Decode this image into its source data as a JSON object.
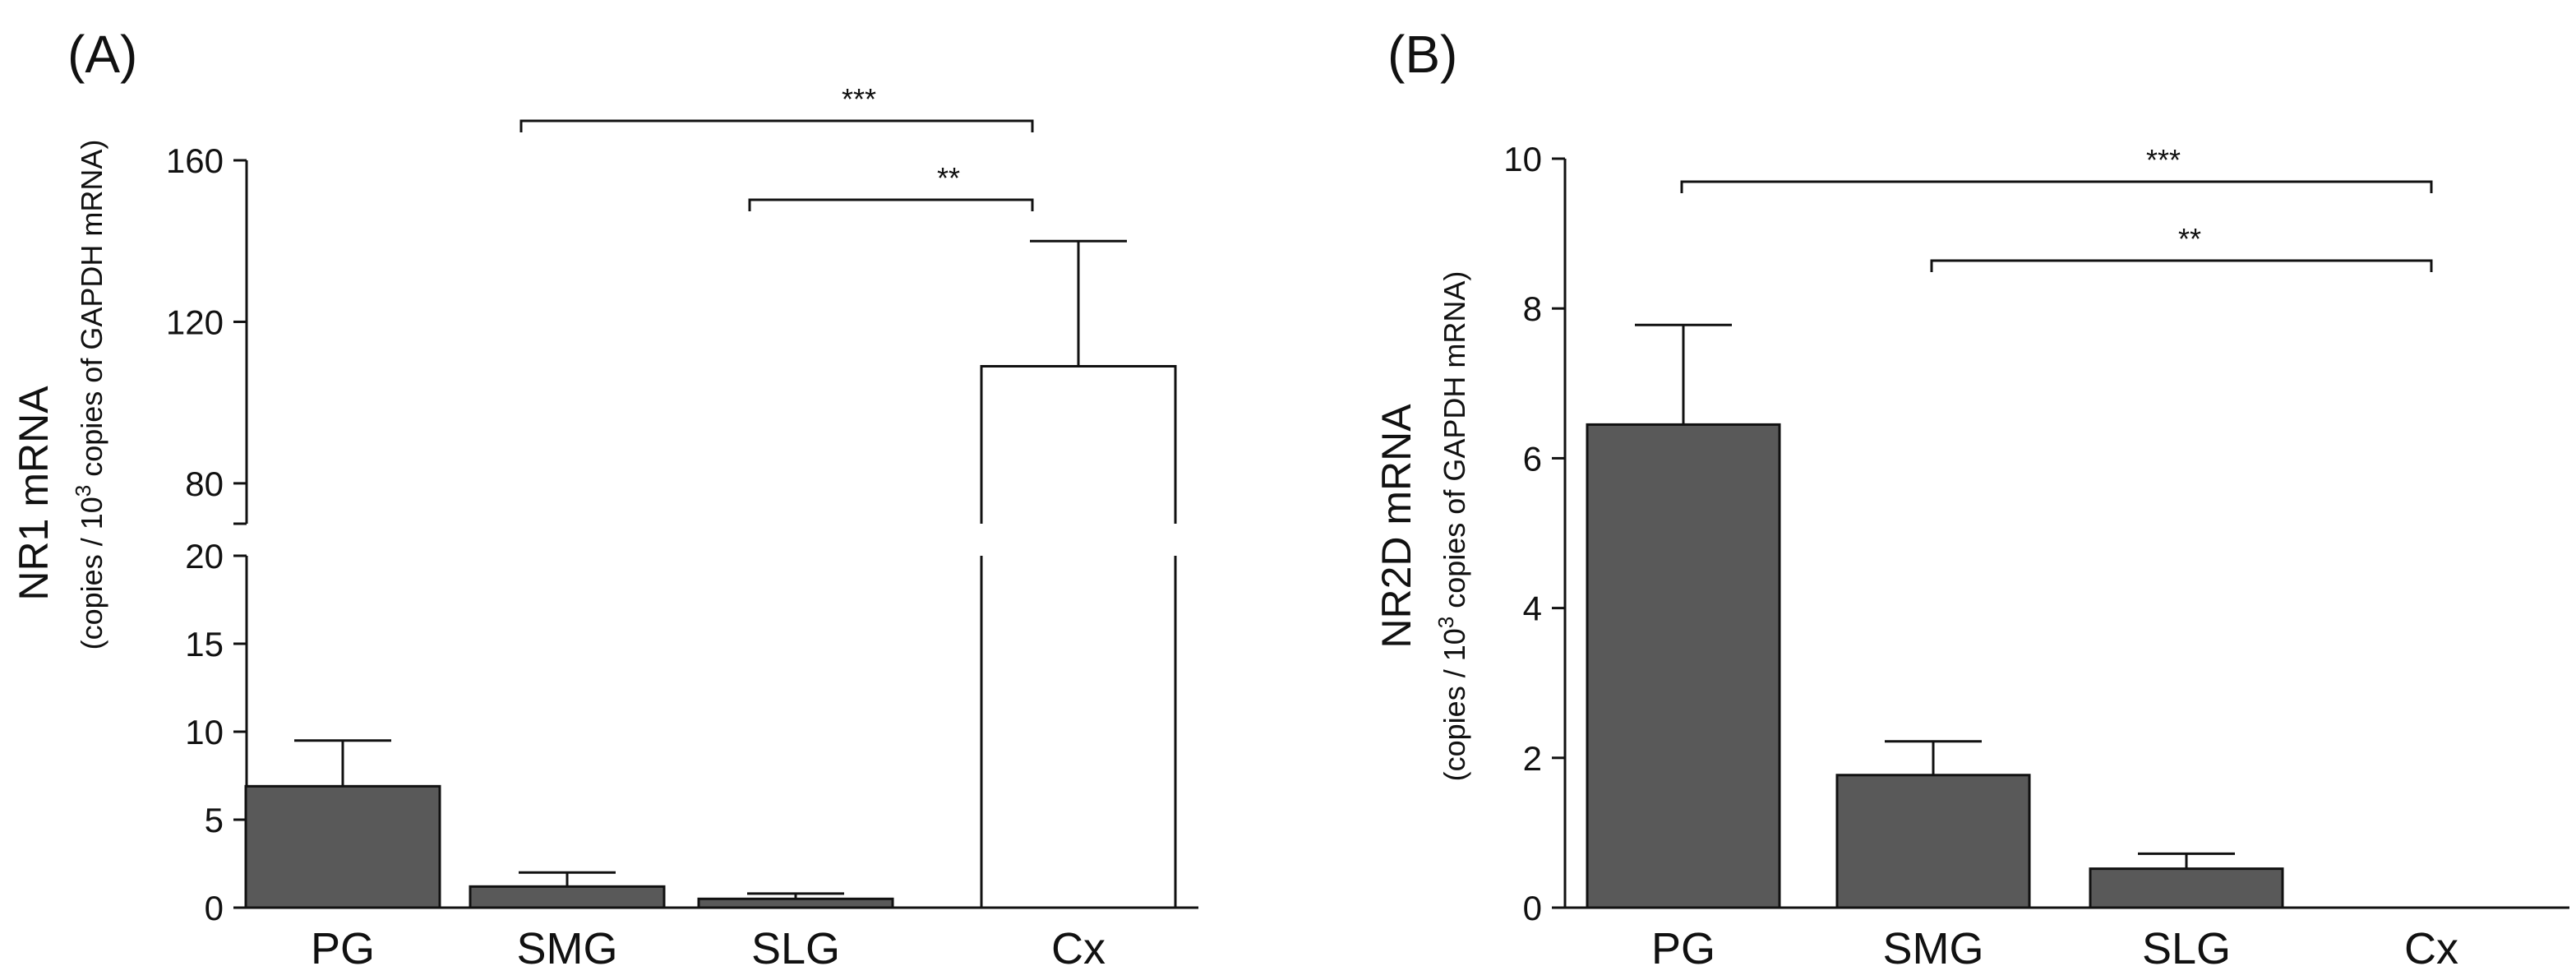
{
  "colors": {
    "dark_bar": "#595959",
    "light_bar": "#ffffff",
    "stroke": "#111111"
  },
  "chart_data": [
    {
      "type": "bar",
      "panel_label": "(A)",
      "ylabel": "NR1 mRNA",
      "ylabel_sub": "(copies / 10",
      "ylabel_sup": "3",
      "ylabel_sub_end": " copies of GAPDH mRNA)",
      "categories": [
        "PG",
        "SMG",
        "SLG",
        "Cx"
      ],
      "values": [
        6.9,
        1.2,
        0.5,
        109
      ],
      "errors": [
        2.6,
        0.8,
        0.3,
        31
      ],
      "bar_colors": [
        "#595959",
        "#595959",
        "#595959",
        "#ffffff"
      ],
      "y_axis_break": true,
      "lower_segment": {
        "ylim": [
          0,
          20
        ],
        "ticks": [
          0,
          5,
          10,
          15,
          20
        ],
        "tick_labels": [
          "0",
          "5",
          "10",
          "15",
          "20"
        ]
      },
      "upper_segment": {
        "ylim": [
          70,
          160
        ],
        "ticks": [
          80,
          120,
          160
        ],
        "tick_labels": [
          "80",
          "120",
          "160"
        ]
      },
      "significance": [
        {
          "from": "SMG",
          "to": "Cx",
          "label": "***"
        },
        {
          "from": "SLG",
          "to": "Cx",
          "label": "**"
        }
      ]
    },
    {
      "type": "bar",
      "panel_label": "(B)",
      "ylabel": "NR2D mRNA",
      "ylabel_sub": "(copies / 10",
      "ylabel_sup": "3",
      "ylabel_sub_end": " copies of GAPDH mRNA)",
      "categories": [
        "PG",
        "SMG",
        "SLG",
        "Cx"
      ],
      "values": [
        6.45,
        1.77,
        0.52,
        0
      ],
      "errors": [
        1.33,
        0.45,
        0.2,
        0
      ],
      "bar_colors": [
        "#595959",
        "#595959",
        "#595959",
        "#595959"
      ],
      "ylim": [
        0,
        10
      ],
      "ticks": [
        0,
        2,
        4,
        6,
        8,
        10
      ],
      "tick_labels": [
        "0",
        "2",
        "4",
        "6",
        "8",
        "10"
      ],
      "significance": [
        {
          "from": "PG",
          "to": "Cx",
          "label": "***"
        },
        {
          "from": "SMG",
          "to": "Cx",
          "label": "**"
        }
      ]
    }
  ]
}
